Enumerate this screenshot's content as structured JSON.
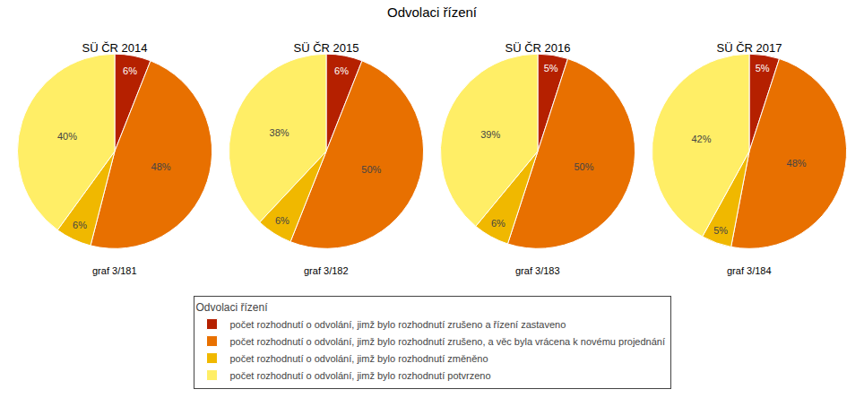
{
  "title": "Odvolaci řízení",
  "legend_title": "Odvolaci řízení",
  "chart_data": [
    {
      "type": "pie",
      "title": "SÜ ČR 2014",
      "subtitle": "graf 3/181",
      "categories": [
        "počet rozhodnutí o odvolání, jimž bylo rozhodnutí zrušeno a řízení zastaveno",
        "počet rozhodnutí o odvolání, jimž bylo rozhodnutí zrušeno, a věc byla vrácena k novému projednání",
        "počet rozhodnutí o odvolání, jimž bylo rozhodnutí změněno",
        "počet rozhodnutí o odvolání, jimž bylo rozhodnutí potvrzeno"
      ],
      "values": [
        6,
        48,
        6,
        40
      ],
      "value_labels": [
        "6%",
        "48%",
        "6%",
        "40%"
      ],
      "colors": [
        "#b52000",
        "#e87000",
        "#f0b800",
        "#ffee66"
      ],
      "data_labels": true
    },
    {
      "type": "pie",
      "title": "SÜ ČR 2015",
      "subtitle": "graf 3/182",
      "categories": [
        "počet rozhodnutí o odvolání, jimž bylo rozhodnutí zrušeno a řízení zastaveno",
        "počet rozhodnutí o odvolání, jimž bylo rozhodnutí zrušeno, a věc byla vrácena k novému projednání",
        "počet rozhodnutí o odvolání, jimž bylo rozhodnutí změněno",
        "počet rozhodnutí o odvolání, jimž bylo rozhodnutí potvrzeno"
      ],
      "values": [
        6,
        50,
        6,
        38
      ],
      "value_labels": [
        "6%",
        "50%",
        "6%",
        "38%"
      ],
      "colors": [
        "#b52000",
        "#e87000",
        "#f0b800",
        "#ffee66"
      ],
      "data_labels": true
    },
    {
      "type": "pie",
      "title": "SÜ ČR 2016",
      "subtitle": "graf 3/183",
      "categories": [
        "počet rozhodnutí o odvolání, jimž bylo rozhodnutí zrušeno a řízení zastaveno",
        "počet rozhodnutí o odvolání, jimž bylo rozhodnutí zrušeno, a věc byla vrácena k novému projednání",
        "počet rozhodnutí o odvolání, jimž bylo rozhodnutí změněno",
        "počet rozhodnutí o odvolání, jimž bylo rozhodnutí potvrzeno"
      ],
      "values": [
        5,
        50,
        6,
        39
      ],
      "value_labels": [
        "5%",
        "50%",
        "6%",
        "39%"
      ],
      "colors": [
        "#b52000",
        "#e87000",
        "#f0b800",
        "#ffee66"
      ],
      "data_labels": true
    },
    {
      "type": "pie",
      "title": "SÜ ČR 2017",
      "subtitle": "graf 3/184",
      "categories": [
        "počet rozhodnutí o odvolání, jimž bylo rozhodnutí zrušeno a řízení zastaveno",
        "počet rozhodnutí o odvolání, jimž bylo rozhodnutí zrušeno, a věc byla vrácena k novému projednání",
        "počet rozhodnutí o odvolání, jimž bylo rozhodnutí změněno",
        "počet rozhodnutí o odvolání, jimž bylo rozhodnutí potvrzeno"
      ],
      "values": [
        5,
        48,
        5,
        42
      ],
      "value_labels": [
        "5%",
        "48%",
        "5%",
        "42%"
      ],
      "colors": [
        "#b52000",
        "#e87000",
        "#f0b800",
        "#ffee66"
      ],
      "data_labels": true
    }
  ]
}
